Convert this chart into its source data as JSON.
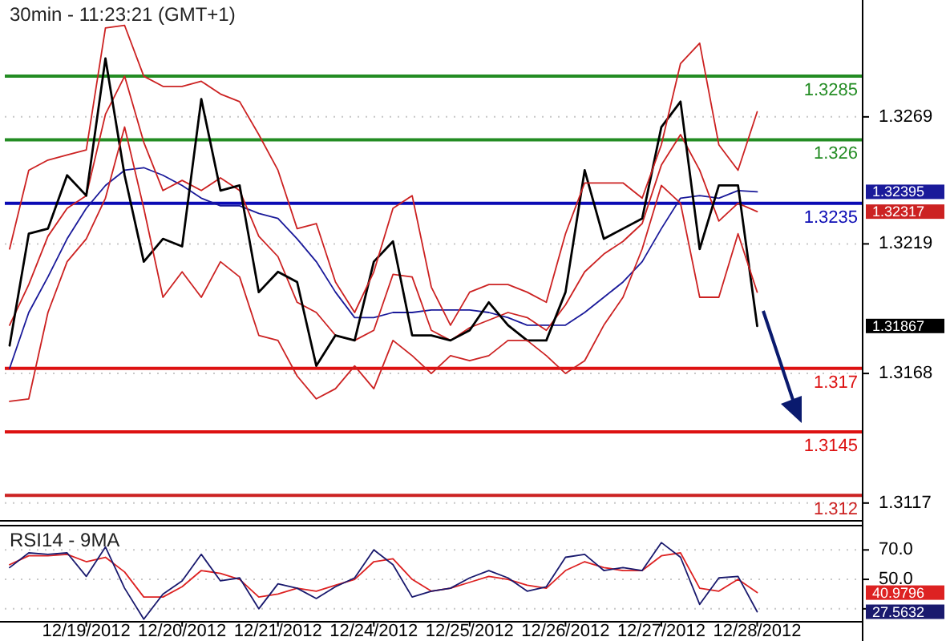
{
  "chart_data": [
    {
      "type": "line",
      "title": "30min - 11:23:21 (GMT+1)",
      "categories": [
        null,
        null,
        null,
        null,
        null,
        null,
        null,
        null,
        null,
        null,
        null,
        null,
        null,
        null,
        null,
        null,
        null,
        null,
        null,
        null,
        null,
        null,
        null,
        null,
        null,
        null,
        null,
        null,
        null,
        null,
        null,
        null,
        null,
        null,
        null,
        null,
        null,
        null,
        null,
        null
      ],
      "tick_labels": "y",
      "grid": "y",
      "ylim": [
        1.311,
        1.3315
      ],
      "yticks": [
        1.3269,
        1.3219,
        1.3168,
        1.3117
      ],
      "series": [
        {
          "color": "#1a1a9a",
          "values": [
            1.317,
            1.3192,
            1.3206,
            1.3221,
            1.3233,
            1.3242,
            1.3248,
            1.3249,
            1.3246,
            1.3242,
            1.3237,
            1.3234,
            1.3234,
            1.3231,
            1.3229,
            1.3221,
            1.3212,
            1.32,
            1.319,
            1.319,
            1.3192,
            1.3192,
            1.3193,
            1.3193,
            1.3193,
            1.3192,
            1.319,
            1.3187,
            1.3187,
            1.3187,
            1.3192,
            1.3198,
            1.3204,
            1.3212,
            1.3225,
            1.3237,
            1.3238,
            1.3237,
            1.324,
            1.32395
          ]
        },
        {
          "color": "#cc2222",
          "values": [
            1.3187,
            1.3203,
            1.3222,
            1.3233,
            1.3238,
            1.327,
            1.3285,
            1.3259,
            1.324,
            1.3244,
            1.324,
            1.3245,
            1.324,
            1.3222,
            1.3214,
            1.3196,
            1.3192,
            1.3183,
            1.3181,
            1.3185,
            1.3207,
            1.3206,
            1.3185,
            1.3181,
            1.3186,
            1.3189,
            1.3192,
            1.319,
            1.3185,
            1.3195,
            1.3208,
            1.3215,
            1.322,
            1.3227,
            1.325,
            1.3262,
            1.3248,
            1.3228,
            1.3235,
            1.32317
          ]
        },
        {
          "color": "#000000",
          "values": [
            1.3179,
            1.3223,
            1.3225,
            1.3246,
            1.3238,
            1.3292,
            1.3246,
            1.3212,
            1.3221,
            1.3218,
            1.3276,
            1.324,
            1.3242,
            1.32,
            1.3208,
            1.3204,
            1.3171,
            1.3183,
            1.3181,
            1.3212,
            1.322,
            1.3183,
            1.3183,
            1.3181,
            1.3185,
            1.3196,
            1.3187,
            1.3181,
            1.3181,
            1.32,
            1.3248,
            1.3221,
            1.3225,
            1.3229,
            1.3265,
            1.3275,
            1.3217,
            1.3242,
            1.3242,
            1.31867
          ]
        },
        {
          "color": "#cc2222",
          "values": [
            1.3217,
            1.3248,
            1.3252,
            1.3254,
            1.3256,
            1.3304,
            1.3305,
            1.3285,
            1.3281,
            1.3281,
            1.3283,
            1.3278,
            1.3275,
            1.3262,
            1.3248,
            1.3225,
            1.3227,
            1.3204,
            1.3192,
            1.3208,
            1.3233,
            1.3238,
            1.3202,
            1.3187,
            1.32,
            1.3203,
            1.3203,
            1.32,
            1.3196,
            1.3223,
            1.3243,
            1.3243,
            1.3243,
            1.3237,
            1.3258,
            1.329,
            1.3298,
            1.3258,
            1.3248,
            1.3271
          ]
        },
        {
          "color": "#cc2222",
          "values": [
            1.3157,
            1.3158,
            1.3192,
            1.3212,
            1.3221,
            1.3237,
            1.3265,
            1.3233,
            1.3198,
            1.3208,
            1.3198,
            1.3212,
            1.3206,
            1.3183,
            1.3181,
            1.3167,
            1.3158,
            1.3162,
            1.3171,
            1.3162,
            1.3181,
            1.3175,
            1.3168,
            1.3175,
            1.3173,
            1.3175,
            1.3181,
            1.3181,
            1.3175,
            1.3168,
            1.3173,
            1.3187,
            1.3198,
            1.3217,
            1.3242,
            1.3235,
            1.3198,
            1.3198,
            1.3223,
            1.32
          ]
        }
      ],
      "ref_lines": [
        {
          "axis": "y",
          "value": 1.3285,
          "label": "1.3285",
          "color": "#238c23"
        },
        {
          "axis": "y",
          "value": 1.326,
          "label": "1.326",
          "color": "#238c23"
        },
        {
          "axis": "y",
          "value": 1.3235,
          "label": "1.3235",
          "color": "#0a0ab4"
        },
        {
          "axis": "y",
          "value": 1.317,
          "label": "1.317",
          "color": "#dd1111"
        },
        {
          "axis": "y",
          "value": 1.3145,
          "label": "1.3145",
          "color": "#dd1111"
        },
        {
          "axis": "y",
          "value": 1.312,
          "label": "1.312",
          "color": "#cc2222"
        }
      ],
      "annotations": [
        "1.32395",
        "1.32317",
        "1.31867"
      ]
    },
    {
      "type": "line",
      "title": "RSI14 - 9MA",
      "categories": [
        null,
        null,
        null,
        null,
        "12/19/2012",
        null,
        null,
        null,
        null,
        "12/20/2012",
        null,
        null,
        null,
        null,
        "12/21/2012",
        null,
        null,
        null,
        null,
        "12/24/2012",
        null,
        null,
        null,
        null,
        "12/25/2012",
        null,
        null,
        null,
        null,
        "12/26/2012",
        null,
        null,
        null,
        null,
        "12/27/2012",
        null,
        null,
        null,
        null,
        "12/28/2012"
      ],
      "grid": "y",
      "ylim": [
        21.2,
        86.5
      ],
      "yticks": [
        {
          "value": 70,
          "label": "70.0"
        },
        {
          "value": 50,
          "label": "50.0"
        },
        {
          "value": 30,
          "label": null
        }
      ],
      "series": [
        {
          "color": "#dd2222",
          "values": [
            60,
            66,
            66,
            67,
            62,
            65,
            55,
            38,
            38,
            45,
            56,
            54,
            50,
            38,
            40,
            44,
            42,
            46,
            50,
            62,
            64,
            50,
            42,
            44,
            48,
            52,
            50,
            46,
            44,
            56,
            62,
            58,
            56,
            56,
            66,
            68,
            44,
            42,
            50,
            41
          ]
        },
        {
          "color": "#1a1a6e",
          "values": [
            58,
            68,
            67,
            68,
            52,
            72,
            44,
            23,
            40,
            49,
            67,
            49,
            51,
            30,
            47,
            44,
            37,
            45,
            51,
            70,
            60,
            38,
            42,
            44,
            51,
            56,
            51,
            42,
            45,
            65,
            67,
            56,
            58,
            56,
            75,
            65,
            33,
            51,
            52,
            28
          ]
        }
      ],
      "annotations": [
        "40.9796",
        "27.5632"
      ]
    }
  ]
}
